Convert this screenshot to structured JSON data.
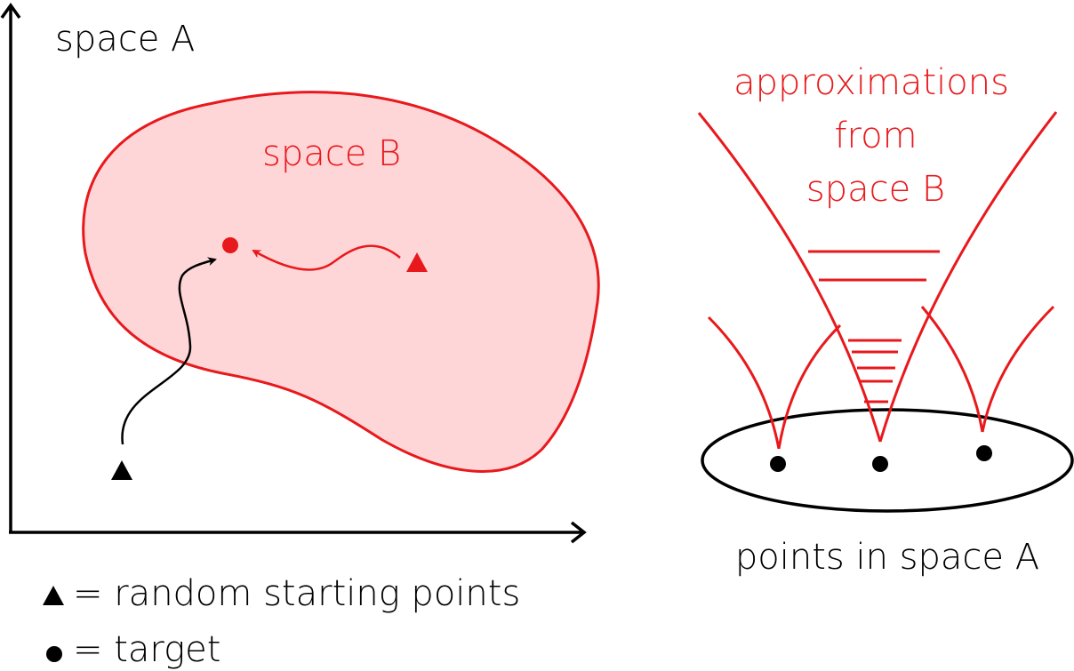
{
  "left_panel": {
    "axis_label": "space A",
    "region_label": "space B",
    "legend": [
      {
        "symbol": "triangle-icon",
        "text": "= random starting points"
      },
      {
        "symbol": "dot-icon",
        "text": "= target"
      }
    ]
  },
  "right_panel": {
    "title_lines": [
      "approximations",
      "from",
      "space B"
    ],
    "base_label": "points in space A"
  },
  "colors": {
    "red": "#e8191c",
    "red_fill": "#ffd6d8",
    "black": "#000000"
  }
}
